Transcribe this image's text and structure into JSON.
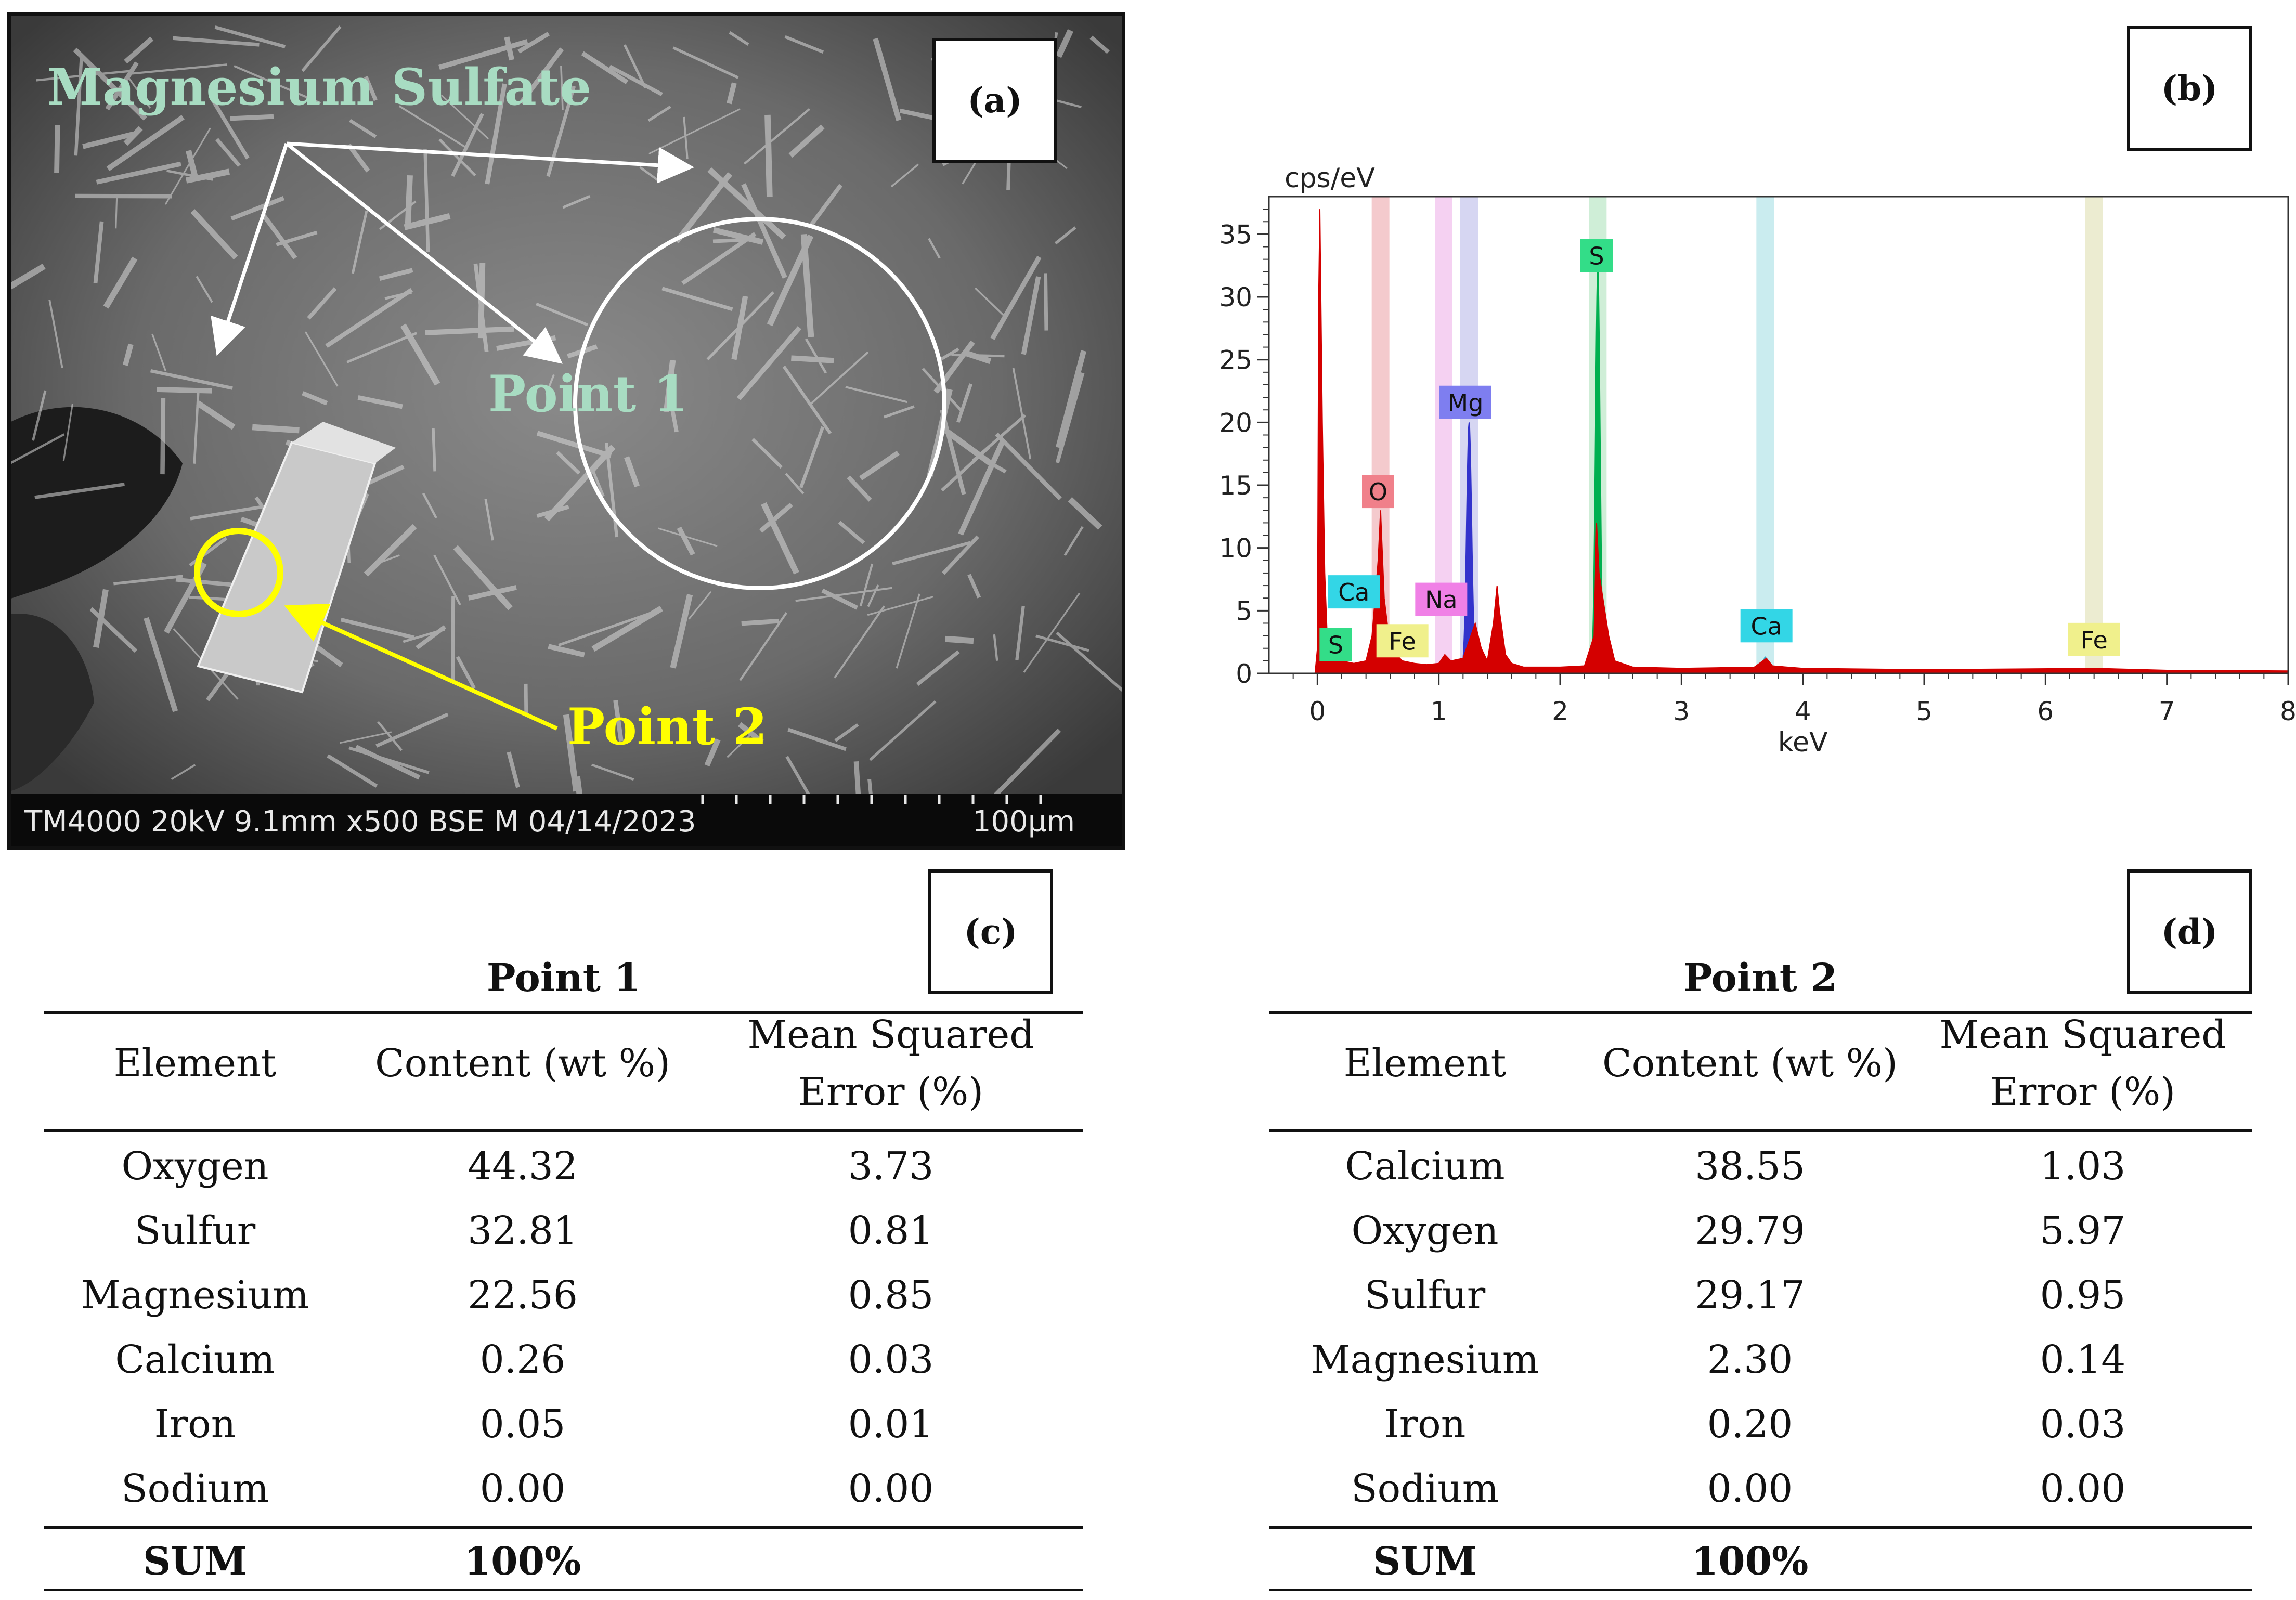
{
  "panel_a": {
    "letter": "(a)",
    "labels": {
      "magnesium_sulfate": "Magnesium Sulfate",
      "point1": "Point 1",
      "point2": "Point 2"
    },
    "caption": "TM4000 20kV 9.1mm x500 BSE M 04/14/2023",
    "scale_label": "100µm",
    "colors": {
      "point1_label": "#a8dcc2",
      "point2_label": "#ffff00",
      "arrows": "#ffffff",
      "point2_marker": "#ffff00"
    }
  },
  "panel_b": {
    "letter": "(b)"
  },
  "chart_data": {
    "type": "line",
    "ylabel": "cps/eV",
    "xlabel": "keV",
    "xlim": [
      -0.4,
      8
    ],
    "ylim": [
      0,
      38
    ],
    "x_ticks": [
      0,
      1,
      2,
      3,
      4,
      5,
      6,
      7,
      8
    ],
    "y_ticks": [
      0,
      5,
      10,
      15,
      20,
      25,
      30,
      35
    ],
    "grid": false,
    "background_trace": {
      "color": "#d40000",
      "points": [
        [
          -0.02,
          0
        ],
        [
          0.0,
          2
        ],
        [
          0.01,
          30
        ],
        [
          0.02,
          37
        ],
        [
          0.04,
          20
        ],
        [
          0.06,
          8
        ],
        [
          0.08,
          3
        ],
        [
          0.12,
          1.5
        ],
        [
          0.2,
          1
        ],
        [
          0.3,
          0.8
        ],
        [
          0.4,
          1
        ],
        [
          0.45,
          3
        ],
        [
          0.5,
          9
        ],
        [
          0.52,
          13
        ],
        [
          0.55,
          6
        ],
        [
          0.6,
          2
        ],
        [
          0.7,
          1
        ],
        [
          0.8,
          0.8
        ],
        [
          0.9,
          0.7
        ],
        [
          1.0,
          0.8
        ],
        [
          1.05,
          1.5
        ],
        [
          1.1,
          1
        ],
        [
          1.2,
          1.2
        ],
        [
          1.3,
          4
        ],
        [
          1.35,
          2
        ],
        [
          1.4,
          1
        ],
        [
          1.45,
          4
        ],
        [
          1.48,
          7
        ],
        [
          1.5,
          5
        ],
        [
          1.55,
          1.5
        ],
        [
          1.6,
          0.8
        ],
        [
          1.7,
          0.5
        ],
        [
          2.0,
          0.5
        ],
        [
          2.2,
          0.6
        ],
        [
          2.28,
          3
        ],
        [
          2.3,
          12
        ],
        [
          2.32,
          8
        ],
        [
          2.4,
          3
        ],
        [
          2.45,
          1
        ],
        [
          2.6,
          0.5
        ],
        [
          3.0,
          0.4
        ],
        [
          3.6,
          0.5
        ],
        [
          3.7,
          1.2
        ],
        [
          3.75,
          0.6
        ],
        [
          4.0,
          0.4
        ],
        [
          5.0,
          0.3
        ],
        [
          6.4,
          0.4
        ],
        [
          7.0,
          0.25
        ],
        [
          8.0,
          0.2
        ]
      ]
    },
    "series": [
      {
        "name": "Mg",
        "color": "#3333cc",
        "peak_x": 1.25,
        "peak_y": 20,
        "width": 0.05
      },
      {
        "name": "S",
        "color": "#00b050",
        "peak_x": 2.31,
        "peak_y": 32.5,
        "width": 0.045
      },
      {
        "name": "O",
        "color": "#d9636e",
        "peak_x": 0.52,
        "peak_y": 13,
        "width": 0.025
      },
      {
        "name": "Ca",
        "color": "#2aa6c8",
        "peak_x": 3.69,
        "peak_y": 1.3,
        "width": 0.04
      }
    ],
    "element_bands": [
      {
        "x": 0.52,
        "color": "#f0b8bc"
      },
      {
        "x": 1.04,
        "color": "#f2c2ee"
      },
      {
        "x": 1.25,
        "color": "#c8c8ee"
      },
      {
        "x": 2.31,
        "color": "#bfe8c9"
      },
      {
        "x": 3.69,
        "color": "#b8e6ea"
      },
      {
        "x": 6.4,
        "color": "#e6e6c2"
      }
    ],
    "annotations": [
      {
        "text": "S",
        "x": 0.15,
        "y": 2.3,
        "color": "#33dd88"
      },
      {
        "text": "Ca",
        "x": 0.3,
        "y": 6.5,
        "color": "#33d6e6"
      },
      {
        "text": "Fe",
        "x": 0.7,
        "y": 2.6,
        "color": "#f0f08c"
      },
      {
        "text": "O",
        "x": 0.5,
        "y": 14.5,
        "color": "#f0808a"
      },
      {
        "text": "Na",
        "x": 1.02,
        "y": 5.9,
        "color": "#f080e6"
      },
      {
        "text": "Mg",
        "x": 1.22,
        "y": 21.6,
        "color": "#7e7ef0"
      },
      {
        "text": "S",
        "x": 2.3,
        "y": 33.3,
        "color": "#33dd88"
      },
      {
        "text": "Ca",
        "x": 3.7,
        "y": 3.8,
        "color": "#33d6e6"
      },
      {
        "text": "Fe",
        "x": 6.4,
        "y": 2.7,
        "color": "#f0f08c"
      }
    ]
  },
  "panel_c": {
    "letter": "(c)",
    "title": "Point 1",
    "headers": [
      "Element",
      "Content (wt %)",
      "Mean Squared",
      "Error (%)"
    ],
    "rows": [
      [
        "Oxygen",
        "44.32",
        "3.73"
      ],
      [
        "Sulfur",
        "32.81",
        "0.81"
      ],
      [
        "Magnesium",
        "22.56",
        "0.85"
      ],
      [
        "Calcium",
        "0.26",
        "0.03"
      ],
      [
        "Iron",
        "0.05",
        "0.01"
      ],
      [
        "Sodium",
        "0.00",
        "0.00"
      ]
    ],
    "sum": [
      "SUM",
      "100%"
    ]
  },
  "panel_d": {
    "letter": "(d)",
    "title": "Point 2",
    "headers": [
      "Element",
      "Content (wt %)",
      "Mean Squared",
      "Error (%)"
    ],
    "rows": [
      [
        "Calcium",
        "38.55",
        "1.03"
      ],
      [
        "Oxygen",
        "29.79",
        "5.97"
      ],
      [
        "Sulfur",
        "29.17",
        "0.95"
      ],
      [
        "Magnesium",
        "2.30",
        "0.14"
      ],
      [
        "Iron",
        "0.20",
        "0.03"
      ],
      [
        "Sodium",
        "0.00",
        "0.00"
      ]
    ],
    "sum": [
      "SUM",
      "100%"
    ]
  }
}
